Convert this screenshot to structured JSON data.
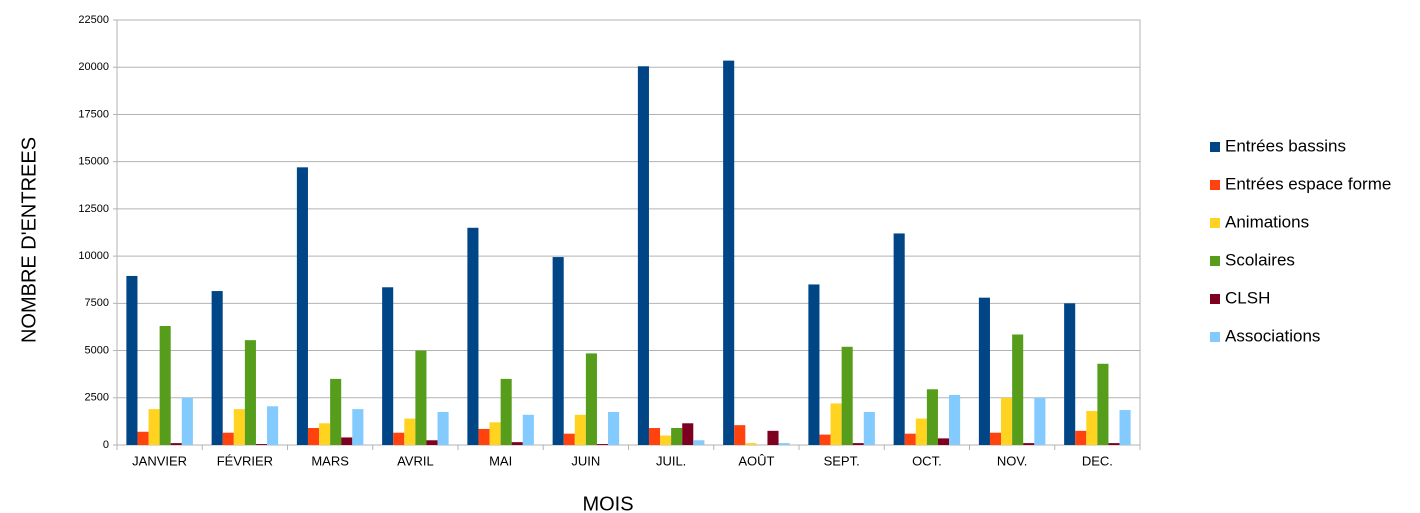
{
  "chart_data": {
    "type": "bar",
    "ylabel": "NOMBRE D'ENTREES",
    "xlabel": "MOIS",
    "categories": [
      "JANVIER",
      "FÉVRIER",
      "MARS",
      "AVRIL",
      "MAI",
      "JUIN",
      "JUIL.",
      "AOÛT",
      "SEPT.",
      "OCT.",
      "NOV.",
      "DEC."
    ],
    "series": [
      {
        "name": "Entrées bassins",
        "color": "#004586",
        "values": [
          8950,
          8150,
          14700,
          8350,
          11500,
          9950,
          20050,
          20350,
          8500,
          11200,
          7800,
          7500
        ]
      },
      {
        "name": "Entrées espace forme",
        "color": "#ff420e",
        "values": [
          700,
          650,
          900,
          650,
          850,
          600,
          900,
          1050,
          550,
          600,
          650,
          750
        ]
      },
      {
        "name": "Animations",
        "color": "#ffd320",
        "values": [
          1900,
          1900,
          1150,
          1400,
          1200,
          1600,
          500,
          100,
          2200,
          1400,
          2500,
          1800
        ]
      },
      {
        "name": "Scolaires",
        "color": "#579d1c",
        "values": [
          6300,
          5550,
          3500,
          5000,
          3500,
          4850,
          900,
          0,
          5200,
          2950,
          5850,
          4300
        ]
      },
      {
        "name": "CLSH",
        "color": "#7e0021",
        "values": [
          100,
          50,
          400,
          250,
          150,
          50,
          1150,
          750,
          100,
          350,
          100,
          100
        ]
      },
      {
        "name": "Associations",
        "color": "#83caff",
        "values": [
          2500,
          2050,
          1900,
          1750,
          1600,
          1750,
          250,
          100,
          1750,
          2650,
          2500,
          1850
        ]
      }
    ],
    "ylim": [
      0,
      22500
    ],
    "yticks": [
      0,
      2500,
      5000,
      7500,
      10000,
      12500,
      15000,
      17500,
      20000,
      22500
    ],
    "grid": true,
    "legend": "right"
  }
}
